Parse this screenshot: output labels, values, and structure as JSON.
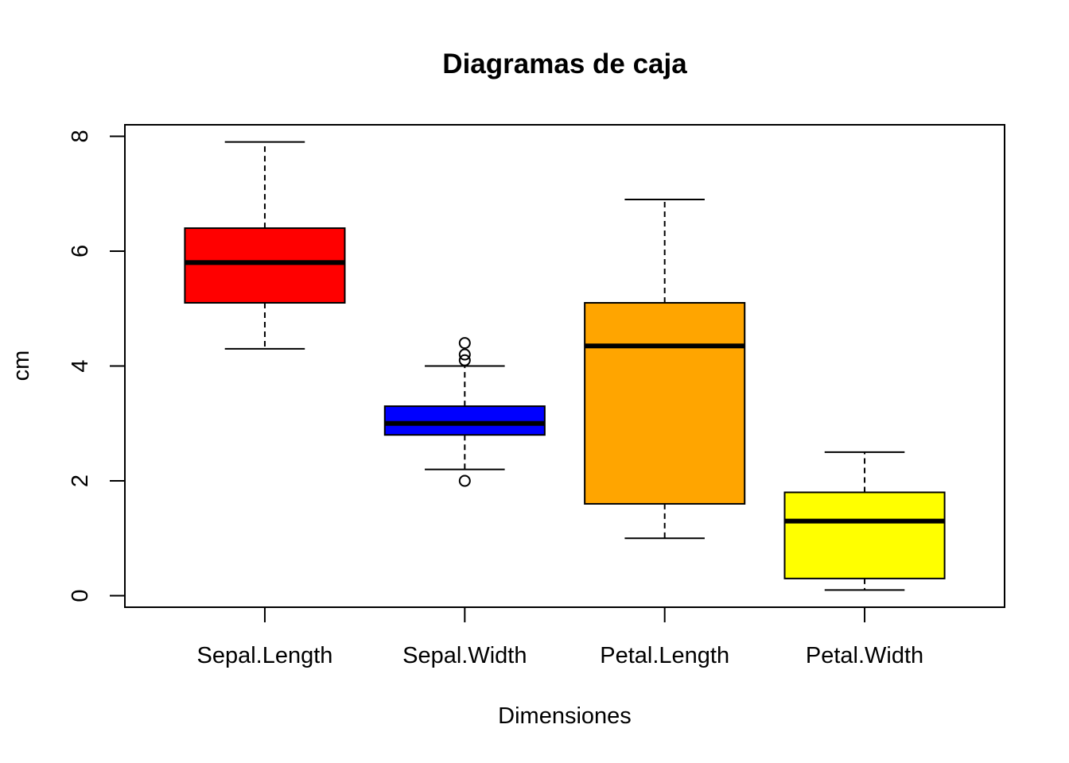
{
  "chart_data": {
    "type": "boxplot",
    "title": "Diagramas de caja",
    "xlabel": "Dimensiones",
    "ylabel": "cm",
    "ylim": [
      -0.2,
      8.2
    ],
    "yticks": [
      "0",
      "2",
      "4",
      "6",
      "8"
    ],
    "grid": false,
    "legend": "none",
    "categories": [
      "Sepal.Length",
      "Sepal.Width",
      "Petal.Length",
      "Petal.Width"
    ],
    "series": [
      {
        "category": "Sepal.Length",
        "color": "#ff0000",
        "whisker_low": 4.3,
        "q1": 5.1,
        "median": 5.8,
        "q3": 6.4,
        "whisker_high": 7.9,
        "outliers": []
      },
      {
        "category": "Sepal.Width",
        "color": "#0000ff",
        "whisker_low": 2.2,
        "q1": 2.8,
        "median": 3.0,
        "q3": 3.3,
        "whisker_high": 4.0,
        "outliers": [
          4.4,
          4.1,
          4.2,
          2.0
        ]
      },
      {
        "category": "Petal.Length",
        "color": "#ffa500",
        "whisker_low": 1.0,
        "q1": 1.6,
        "median": 4.35,
        "q3": 5.1,
        "whisker_high": 6.9,
        "outliers": []
      },
      {
        "category": "Petal.Width",
        "color": "#ffff00",
        "whisker_low": 0.1,
        "q1": 0.3,
        "median": 1.3,
        "q3": 1.8,
        "whisker_high": 2.5,
        "outliers": []
      }
    ]
  }
}
